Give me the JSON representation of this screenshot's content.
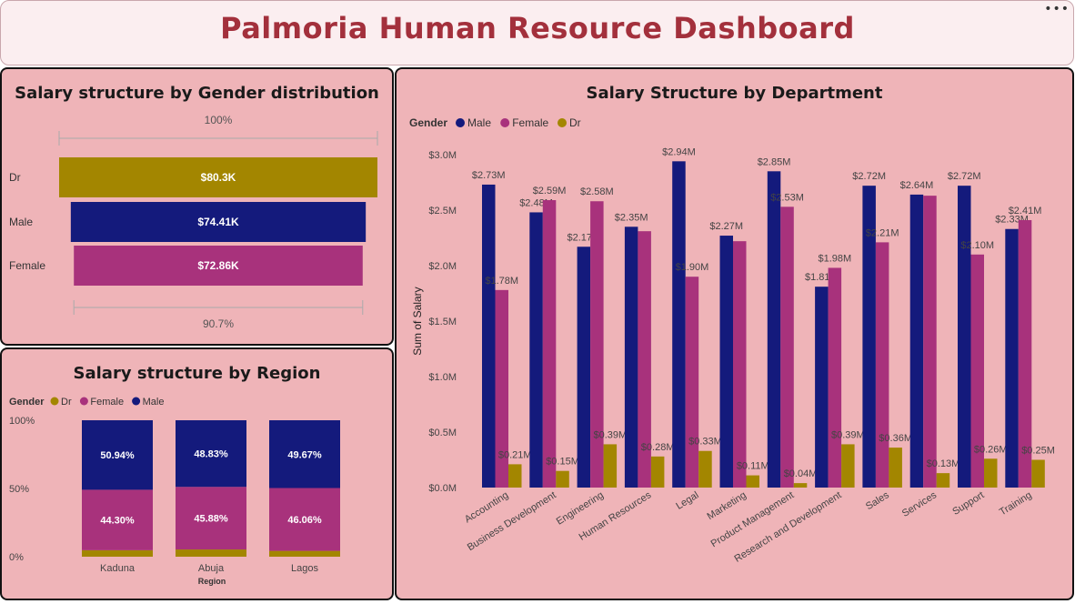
{
  "header": {
    "title": "Palmoria Human Resource Dashboard",
    "more_icon": "more-options-icon"
  },
  "colors": {
    "male": "#141a7c",
    "female": "#a8327c",
    "dr": "#a38600",
    "panel_bg": "#efb4b8",
    "title_red": "#a3303c"
  },
  "gender_panel": {
    "title": "Salary structure by Gender distribution",
    "top_pct": "100%",
    "bottom_pct": "90.7%",
    "chart_data": {
      "type": "bar",
      "categories": [
        "Dr",
        "Male",
        "Female"
      ],
      "values": [
        80.3,
        74.41,
        72.86
      ],
      "value_labels": [
        "$80.3K",
        "$74.41K",
        "$72.86K"
      ],
      "colors": [
        "#a38600",
        "#141a7c",
        "#a8327c"
      ]
    }
  },
  "region_panel": {
    "title": "Salary structure by Region",
    "legend_title": "Gender",
    "legend": [
      {
        "name": "Dr",
        "color": "#a38600"
      },
      {
        "name": "Female",
        "color": "#a8327c"
      },
      {
        "name": "Male",
        "color": "#141a7c"
      }
    ],
    "chart_data": {
      "type": "bar",
      "stacked": "100%",
      "categories": [
        "Kaduna",
        "Abuja",
        "Lagos"
      ],
      "xlabel": "Region",
      "yticks": [
        "100%",
        "50%",
        "0%"
      ],
      "series": [
        {
          "name": "Dr",
          "values": [
            4.76,
            5.29,
            4.27
          ],
          "color": "#a38600"
        },
        {
          "name": "Female",
          "values": [
            44.3,
            45.88,
            46.06
          ],
          "labels": [
            "44.30%",
            "45.88%",
            "46.06%"
          ],
          "color": "#a8327c"
        },
        {
          "name": "Male",
          "values": [
            50.94,
            48.83,
            49.67
          ],
          "labels": [
            "50.94%",
            "48.83%",
            "49.67%"
          ],
          "color": "#141a7c"
        }
      ]
    }
  },
  "dept_panel": {
    "title": "Salary Structure by Department",
    "legend_title": "Gender",
    "legend": [
      {
        "name": "Male",
        "color": "#141a7c"
      },
      {
        "name": "Female",
        "color": "#a8327c"
      },
      {
        "name": "Dr",
        "color": "#a38600"
      }
    ],
    "chart_data": {
      "type": "bar",
      "ylabel": "Sum of Salary",
      "ylim": [
        0,
        3.0
      ],
      "yticks": [
        {
          "v": 3.0,
          "label": "$3.0M"
        },
        {
          "v": 2.5,
          "label": "$2.5M"
        },
        {
          "v": 2.0,
          "label": "$2.0M"
        },
        {
          "v": 1.5,
          "label": "$1.5M"
        },
        {
          "v": 1.0,
          "label": "$1.0M"
        },
        {
          "v": 0.5,
          "label": "$0.5M"
        },
        {
          "v": 0,
          "label": "$0.0M"
        }
      ],
      "categories": [
        "Accounting",
        "Business Development",
        "Engineering",
        "Human Resources",
        "Legal",
        "Marketing",
        "Product Management",
        "Research and Development",
        "Sales",
        "Services",
        "Support",
        "Training"
      ],
      "series": [
        {
          "name": "Male",
          "color": "#141a7c",
          "values": [
            2.73,
            2.48,
            2.17,
            2.35,
            2.94,
            2.27,
            2.85,
            1.81,
            2.72,
            2.64,
            2.72,
            2.33
          ],
          "labels": [
            "$2.73M",
            "$2.48M",
            "$2.17M",
            "$2.35M",
            "$2.94M",
            "$2.27M",
            "$2.85M",
            "$1.81M",
            "$2.72M",
            "$2.64M",
            "$2.72M",
            "$2.33M"
          ]
        },
        {
          "name": "Female",
          "color": "#a8327c",
          "values": [
            1.78,
            2.59,
            2.58,
            2.31,
            1.9,
            2.22,
            2.53,
            1.98,
            2.21,
            2.63,
            2.1,
            2.41
          ],
          "labels": [
            "$1.78M",
            "$2.59M",
            "$2.58M",
            "",
            "$1.90M",
            "",
            "$2.53M",
            "$1.98M",
            "$2.21M",
            "",
            "$2.10M",
            "$2.41M"
          ]
        },
        {
          "name": "Dr",
          "color": "#a38600",
          "values": [
            0.21,
            0.15,
            0.39,
            0.28,
            0.33,
            0.11,
            0.04,
            0.39,
            0.36,
            0.13,
            0.26,
            0.25
          ],
          "labels": [
            "$0.21M",
            "$0.15M",
            "$0.39M",
            "$0.28M",
            "$0.33M",
            "$0.11M",
            "$0.04M",
            "$0.39M",
            "$0.36M",
            "$0.13M",
            "$0.26M",
            "$0.25M"
          ]
        }
      ]
    }
  }
}
